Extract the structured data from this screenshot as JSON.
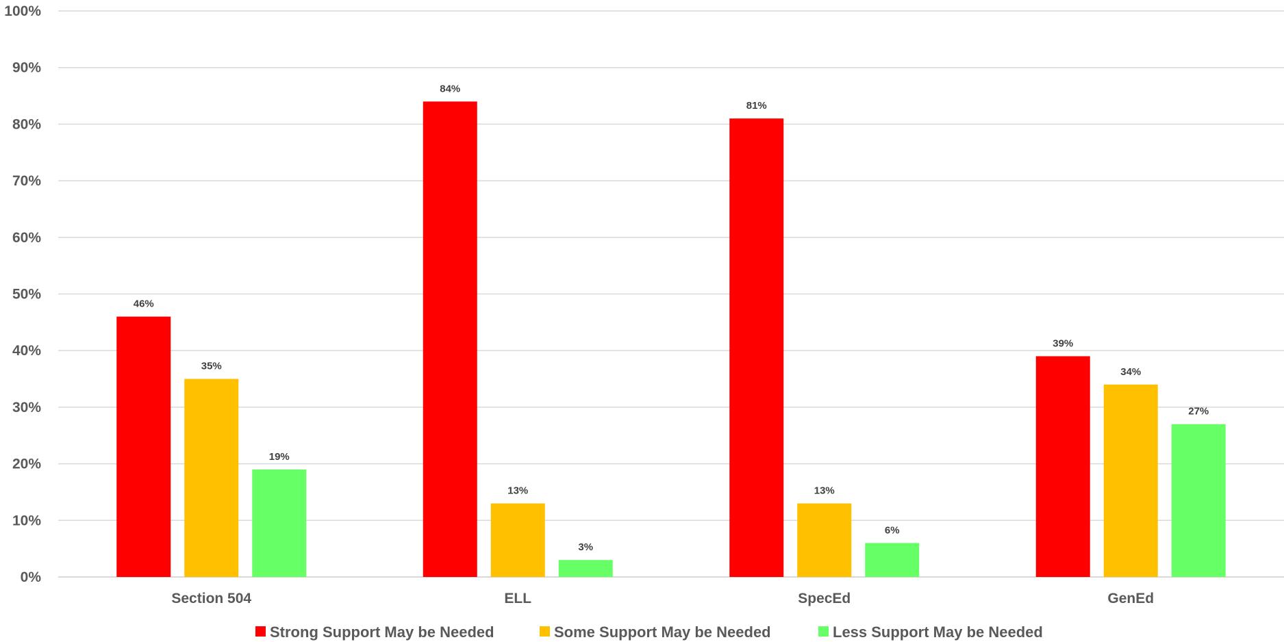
{
  "chart_data": {
    "type": "bar",
    "title": "",
    "xlabel": "",
    "ylabel": "",
    "ylim": [
      0,
      100
    ],
    "yticks": [
      "0%",
      "10%",
      "20%",
      "30%",
      "40%",
      "50%",
      "60%",
      "70%",
      "80%",
      "90%",
      "100%"
    ],
    "categories": [
      "Section 504",
      "ELL",
      "SpecEd",
      "GenEd"
    ],
    "series": [
      {
        "name": "Strong Support May be Needed",
        "color": "#ff0000",
        "values": [
          46,
          84,
          81,
          39
        ],
        "labels": [
          "46%",
          "84%",
          "81%",
          "39%"
        ]
      },
      {
        "name": "Some Support May be Needed",
        "color": "#ffc000",
        "values": [
          35,
          13,
          13,
          34
        ],
        "labels": [
          "35%",
          "13%",
          "13%",
          "34%"
        ]
      },
      {
        "name": "Less Support May be Needed",
        "color": "#66ff66",
        "values": [
          19,
          3,
          6,
          27
        ],
        "labels": [
          "19%",
          "3%",
          "6%",
          "27%"
        ]
      }
    ],
    "grid": true,
    "legend": "bottom"
  }
}
